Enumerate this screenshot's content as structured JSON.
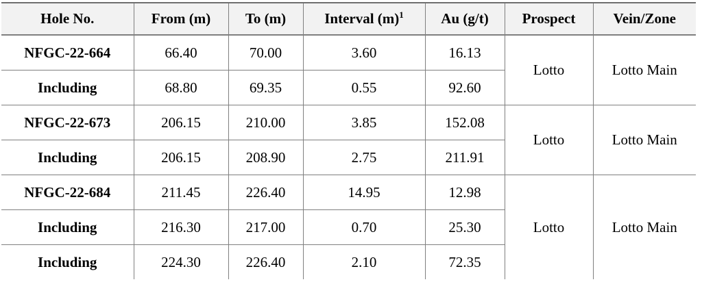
{
  "table": {
    "columns": [
      {
        "label": "Hole No."
      },
      {
        "label": "From (m)"
      },
      {
        "label": "To (m)"
      },
      {
        "label": "Interval (m)",
        "sup": "1"
      },
      {
        "label": "Au (g/t)"
      },
      {
        "label": "Prospect"
      },
      {
        "label": "Vein/Zone"
      }
    ],
    "groups": [
      {
        "prospect": "Lotto",
        "vein_zone": "Lotto Main",
        "rows": [
          {
            "hole": "NFGC-22-664",
            "from": "66.40",
            "to": "70.00",
            "interval": "3.60",
            "au": "16.13"
          },
          {
            "hole": "Including",
            "from": "68.80",
            "to": "69.35",
            "interval": "0.55",
            "au": "92.60"
          }
        ]
      },
      {
        "prospect": "Lotto",
        "vein_zone": "Lotto Main",
        "rows": [
          {
            "hole": "NFGC-22-673",
            "from": "206.15",
            "to": "210.00",
            "interval": "3.85",
            "au": "152.08"
          },
          {
            "hole": "Including",
            "from": "206.15",
            "to": "208.90",
            "interval": "2.75",
            "au": "211.91"
          }
        ]
      },
      {
        "prospect": "Lotto",
        "vein_zone": "Lotto Main",
        "rows": [
          {
            "hole": "NFGC-22-684",
            "from": "211.45",
            "to": "226.40",
            "interval": "14.95",
            "au": "12.98"
          },
          {
            "hole": "Including",
            "from": "216.30",
            "to": "217.00",
            "interval": "0.70",
            "au": "25.30"
          },
          {
            "hole": "Including",
            "from": "224.30",
            "to": "226.40",
            "interval": "2.10",
            "au": "72.35"
          }
        ]
      }
    ]
  },
  "colors": {
    "header_bg": "#f2f2f2",
    "border": "#7f7f7f",
    "text": "#000000"
  }
}
